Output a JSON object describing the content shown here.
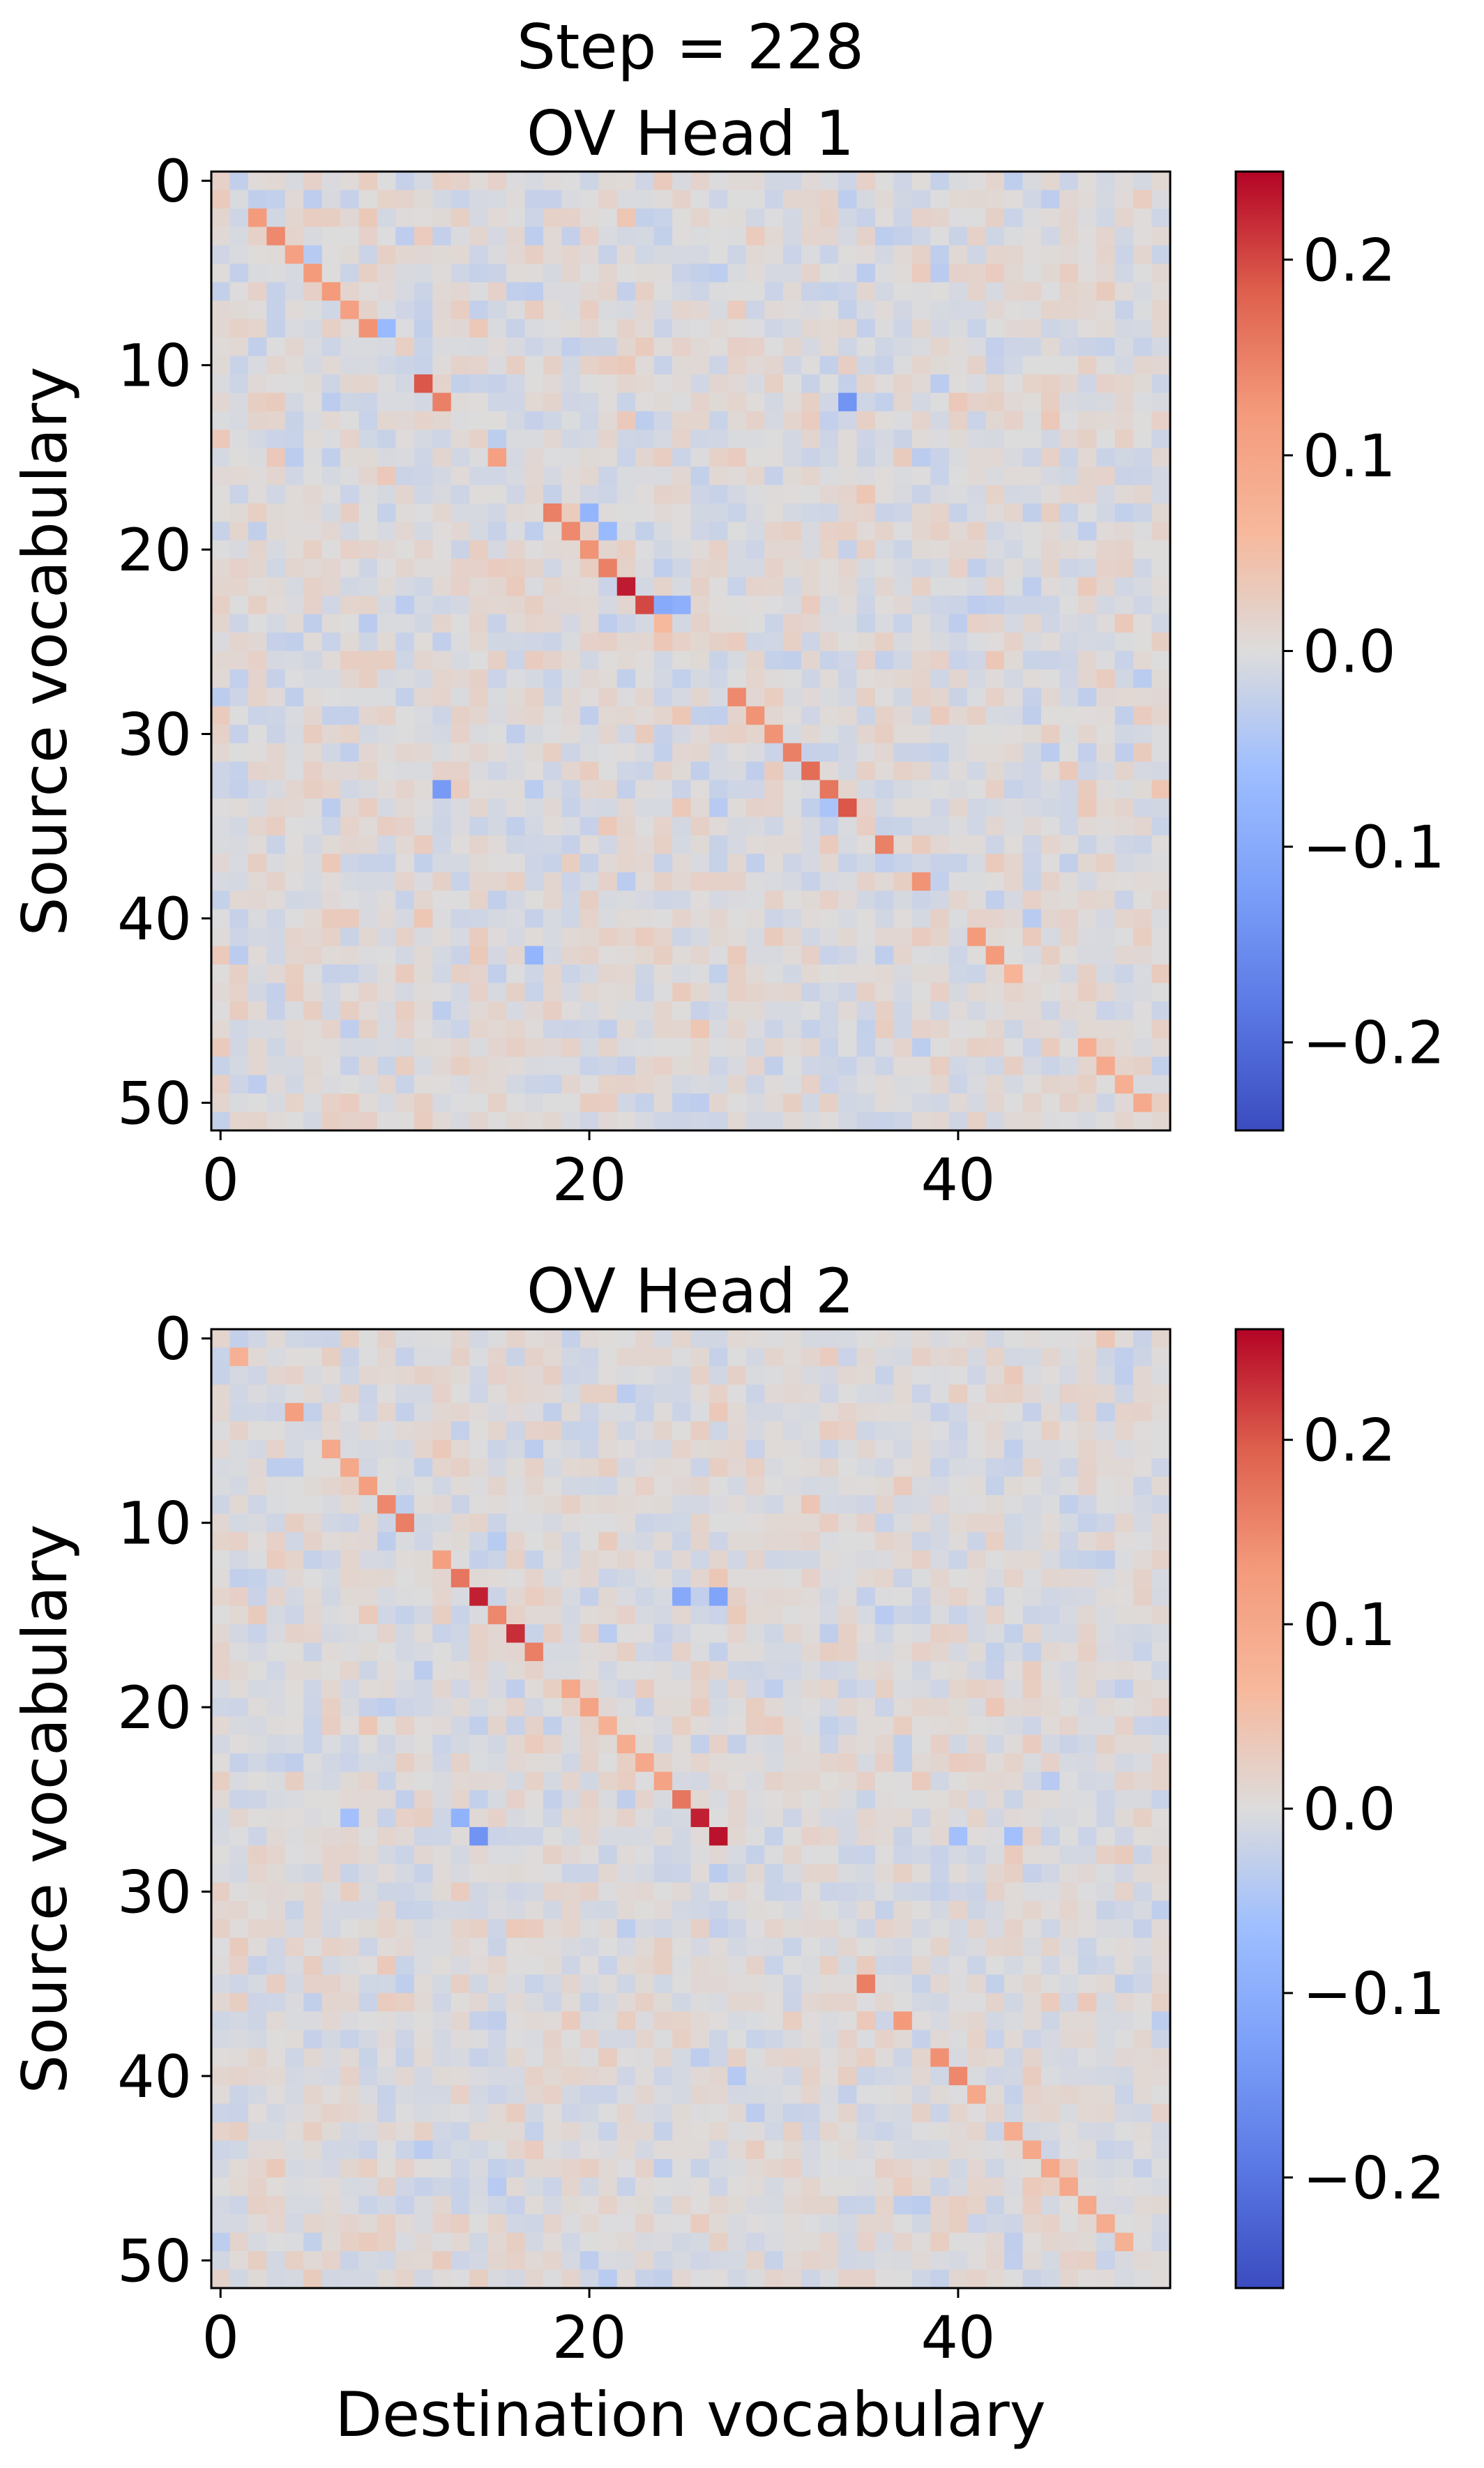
{
  "chart_data": {
    "suptitle": "Step = 228",
    "xlabel": "Destination vocabulary",
    "ylabel": "Source vocabulary",
    "panels": [
      {
        "type": "heatmap",
        "title": "OV Head 1",
        "size": 52,
        "colormap": "coolwarm",
        "vmin": -0.245,
        "vmax": 0.245,
        "x_ticks": [
          {
            "value": 0,
            "label": "0"
          },
          {
            "value": 20,
            "label": "20"
          },
          {
            "value": 40,
            "label": "40"
          }
        ],
        "y_ticks": [
          {
            "value": 0,
            "label": "0"
          },
          {
            "value": 10,
            "label": "10"
          },
          {
            "value": 20,
            "label": "20"
          },
          {
            "value": 30,
            "label": "30"
          },
          {
            "value": 40,
            "label": "40"
          },
          {
            "value": 50,
            "label": "50"
          }
        ],
        "colorbar_ticks": [
          {
            "value": 0.2,
            "label": "0.2"
          },
          {
            "value": 0.1,
            "label": "0.1"
          },
          {
            "value": 0.0,
            "label": "0.0"
          },
          {
            "value": -0.1,
            "label": "−0.1"
          },
          {
            "value": -0.2,
            "label": "−0.2"
          }
        ],
        "highlights": [
          [
            2,
            2,
            0.12
          ],
          [
            3,
            3,
            0.14
          ],
          [
            4,
            4,
            0.11
          ],
          [
            5,
            5,
            0.12
          ],
          [
            6,
            6,
            0.12
          ],
          [
            7,
            7,
            0.11
          ],
          [
            8,
            8,
            0.13
          ],
          [
            11,
            11,
            0.19
          ],
          [
            12,
            12,
            0.15
          ],
          [
            15,
            15,
            0.11
          ],
          [
            18,
            18,
            0.15
          ],
          [
            19,
            19,
            0.14
          ],
          [
            20,
            20,
            0.13
          ],
          [
            21,
            21,
            0.15
          ],
          [
            22,
            22,
            0.23
          ],
          [
            23,
            23,
            0.2
          ],
          [
            24,
            24,
            0.06
          ],
          [
            28,
            28,
            0.14
          ],
          [
            29,
            29,
            0.13
          ],
          [
            30,
            30,
            0.13
          ],
          [
            31,
            31,
            0.15
          ],
          [
            32,
            32,
            0.17
          ],
          [
            33,
            33,
            0.16
          ],
          [
            34,
            34,
            0.19
          ],
          [
            36,
            36,
            0.15
          ],
          [
            38,
            38,
            0.13
          ],
          [
            41,
            41,
            0.12
          ],
          [
            42,
            42,
            0.12
          ],
          [
            43,
            43,
            0.07
          ],
          [
            47,
            47,
            0.08
          ],
          [
            48,
            48,
            0.09
          ],
          [
            49,
            49,
            0.08
          ],
          [
            50,
            50,
            0.09
          ],
          [
            12,
            34,
            -0.14
          ],
          [
            33,
            12,
            -0.13
          ],
          [
            8,
            9,
            -0.07
          ],
          [
            23,
            24,
            -0.1
          ],
          [
            23,
            25,
            -0.09
          ],
          [
            18,
            20,
            -0.08
          ],
          [
            19,
            21,
            -0.07
          ],
          [
            34,
            33,
            -0.05
          ],
          [
            42,
            17,
            -0.08
          ]
        ]
      },
      {
        "type": "heatmap",
        "title": "OV Head 2",
        "size": 52,
        "colormap": "coolwarm",
        "vmin": -0.26,
        "vmax": 0.26,
        "x_ticks": [
          {
            "value": 0,
            "label": "0"
          },
          {
            "value": 20,
            "label": "20"
          },
          {
            "value": 40,
            "label": "40"
          }
        ],
        "y_ticks": [
          {
            "value": 0,
            "label": "0"
          },
          {
            "value": 10,
            "label": "10"
          },
          {
            "value": 20,
            "label": "20"
          },
          {
            "value": 30,
            "label": "30"
          },
          {
            "value": 40,
            "label": "40"
          },
          {
            "value": 50,
            "label": "50"
          }
        ],
        "colorbar_ticks": [
          {
            "value": 0.2,
            "label": "0.2"
          },
          {
            "value": 0.1,
            "label": "0.1"
          },
          {
            "value": 0.0,
            "label": "0.0"
          },
          {
            "value": -0.1,
            "label": "−0.1"
          },
          {
            "value": -0.2,
            "label": "−0.2"
          }
        ],
        "highlights": [
          [
            1,
            1,
            0.08
          ],
          [
            4,
            4,
            0.12
          ],
          [
            6,
            6,
            0.1
          ],
          [
            7,
            7,
            0.1
          ],
          [
            8,
            8,
            0.12
          ],
          [
            9,
            9,
            0.15
          ],
          [
            10,
            10,
            0.16
          ],
          [
            12,
            12,
            0.12
          ],
          [
            13,
            13,
            0.17
          ],
          [
            14,
            14,
            0.24
          ],
          [
            15,
            15,
            0.15
          ],
          [
            16,
            16,
            0.23
          ],
          [
            17,
            17,
            0.16
          ],
          [
            19,
            19,
            0.1
          ],
          [
            20,
            20,
            0.11
          ],
          [
            21,
            21,
            0.08
          ],
          [
            22,
            22,
            0.09
          ],
          [
            23,
            23,
            0.1
          ],
          [
            24,
            24,
            0.11
          ],
          [
            25,
            25,
            0.17
          ],
          [
            26,
            26,
            0.24
          ],
          [
            27,
            27,
            0.25
          ],
          [
            35,
            35,
            0.16
          ],
          [
            37,
            37,
            0.13
          ],
          [
            39,
            39,
            0.14
          ],
          [
            40,
            40,
            0.15
          ],
          [
            41,
            41,
            0.1
          ],
          [
            43,
            43,
            0.09
          ],
          [
            44,
            44,
            0.1
          ],
          [
            45,
            45,
            0.1
          ],
          [
            46,
            46,
            0.1
          ],
          [
            47,
            47,
            0.1
          ],
          [
            48,
            48,
            0.09
          ],
          [
            49,
            49,
            0.08
          ],
          [
            14,
            25,
            -0.11
          ],
          [
            14,
            27,
            -0.12
          ],
          [
            26,
            13,
            -0.09
          ],
          [
            27,
            14,
            -0.15
          ],
          [
            26,
            7,
            -0.06
          ],
          [
            27,
            40,
            -0.06
          ],
          [
            27,
            43,
            -0.06
          ]
        ]
      }
    ]
  }
}
